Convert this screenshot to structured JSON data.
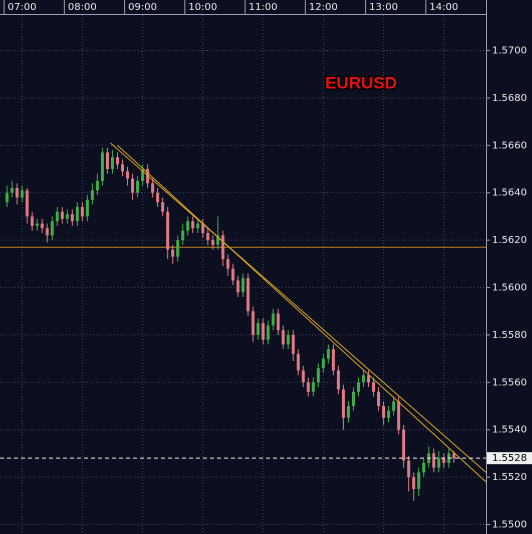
{
  "chart_data": {
    "type": "candlestick",
    "title": "EURUSD",
    "xlim": [
      398,
      882
    ],
    "xticks": [
      {
        "value": 420,
        "label": "07:00"
      },
      {
        "value": 480,
        "label": "08:00"
      },
      {
        "value": 540,
        "label": "09:00"
      },
      {
        "value": 600,
        "label": "10:00"
      },
      {
        "value": 660,
        "label": "11:00"
      },
      {
        "value": 720,
        "label": "12:00"
      },
      {
        "value": 780,
        "label": "13:00"
      },
      {
        "value": 840,
        "label": "14:00"
      }
    ],
    "ylim": [
      1.5496,
      1.5715
    ],
    "yticks": [
      {
        "value": 1.55,
        "label": "1.5500"
      },
      {
        "value": 1.552,
        "label": "1.5520"
      },
      {
        "value": 1.554,
        "label": "1.5540"
      },
      {
        "value": 1.556,
        "label": "1.5560"
      },
      {
        "value": 1.558,
        "label": "1.5580"
      },
      {
        "value": 1.56,
        "label": "1.5600"
      },
      {
        "value": 1.562,
        "label": "1.5620"
      },
      {
        "value": 1.564,
        "label": "1.5640"
      },
      {
        "value": 1.566,
        "label": "1.5660"
      },
      {
        "value": 1.568,
        "label": "1.5680"
      },
      {
        "value": 1.57,
        "label": "1.5700"
      }
    ],
    "grid": true,
    "up_color": "#3fae49",
    "down_color": "#e07a84",
    "x": [
      405,
      410,
      415,
      420,
      425,
      430,
      435,
      440,
      445,
      450,
      455,
      460,
      465,
      470,
      475,
      480,
      485,
      490,
      495,
      500,
      505,
      510,
      515,
      520,
      525,
      530,
      535,
      540,
      545,
      550,
      555,
      560,
      565,
      570,
      575,
      580,
      585,
      590,
      595,
      600,
      605,
      610,
      615,
      620,
      625,
      630,
      635,
      640,
      645,
      650,
      655,
      660,
      665,
      670,
      675,
      680,
      685,
      690,
      695,
      700,
      705,
      710,
      715,
      720,
      725,
      730,
      735,
      740,
      745,
      750,
      755,
      760,
      765,
      770,
      775,
      780,
      785,
      790,
      795,
      800,
      805,
      810,
      815,
      820,
      825,
      830,
      835,
      840,
      845,
      850
    ],
    "open": [
      1.5636,
      1.564,
      1.5642,
      1.5638,
      1.5641,
      1.563,
      1.5626,
      1.5627,
      1.5625,
      1.5622,
      1.5628,
      1.5632,
      1.5629,
      1.5631,
      1.5628,
      1.5634,
      1.563,
      1.5637,
      1.5641,
      1.5645,
      1.5657,
      1.565,
      1.5655,
      1.5652,
      1.5649,
      1.5646,
      1.564,
      1.5645,
      1.565,
      1.5644,
      1.564,
      1.5636,
      1.5632,
      1.5616,
      1.5613,
      1.562,
      1.5624,
      1.5628,
      1.5625,
      1.5627,
      1.5623,
      1.562,
      1.5618,
      1.5622,
      1.5612,
      1.5608,
      1.5603,
      1.5598,
      1.5604,
      1.559,
      1.558,
      1.5585,
      1.5578,
      1.5584,
      1.5589,
      1.5582,
      1.5576,
      1.558,
      1.5572,
      1.5565,
      1.556,
      1.5556,
      1.556,
      1.5566,
      1.557,
      1.5574,
      1.5565,
      1.5557,
      1.5545,
      1.555,
      1.5556,
      1.556,
      1.5563,
      1.556,
      1.5556,
      1.555,
      1.5545,
      1.5548,
      1.5552,
      1.554,
      1.5527,
      1.552,
      1.5515,
      1.5522,
      1.5526,
      1.553,
      1.5524,
      1.5528,
      1.5526,
      1.553
    ],
    "high": [
      1.5643,
      1.5645,
      1.5644,
      1.5643,
      1.5642,
      1.5632,
      1.5629,
      1.5629,
      1.5627,
      1.563,
      1.5634,
      1.5634,
      1.5633,
      1.5633,
      1.5636,
      1.5636,
      1.5639,
      1.5644,
      1.5648,
      1.5659,
      1.5659,
      1.5658,
      1.5657,
      1.5654,
      1.5651,
      1.5648,
      1.5647,
      1.5652,
      1.5652,
      1.5646,
      1.5642,
      1.5638,
      1.5634,
      1.5618,
      1.5622,
      1.5627,
      1.563,
      1.563,
      1.5629,
      1.5629,
      1.5625,
      1.5622,
      1.563,
      1.5624,
      1.5614,
      1.561,
      1.5605,
      1.5606,
      1.5606,
      1.5592,
      1.5587,
      1.5587,
      1.5586,
      1.5591,
      1.5591,
      1.5584,
      1.5582,
      1.5582,
      1.5574,
      1.5567,
      1.5562,
      1.5562,
      1.5568,
      1.5572,
      1.5576,
      1.5576,
      1.5567,
      1.5559,
      1.5552,
      1.5558,
      1.5562,
      1.5565,
      1.5565,
      1.5562,
      1.5558,
      1.5552,
      1.555,
      1.5554,
      1.5554,
      1.5542,
      1.5529,
      1.5522,
      1.5524,
      1.5528,
      1.5533,
      1.5532,
      1.5531,
      1.553,
      1.5532,
      1.5531
    ],
    "low": [
      1.5634,
      1.5638,
      1.5635,
      1.5636,
      1.5627,
      1.5624,
      1.5624,
      1.5623,
      1.5619,
      1.562,
      1.5626,
      1.5627,
      1.5627,
      1.5626,
      1.5626,
      1.5628,
      1.5628,
      1.5635,
      1.5639,
      1.5643,
      1.5648,
      1.5648,
      1.565,
      1.5647,
      1.5643,
      1.5637,
      1.5638,
      1.5643,
      1.5642,
      1.5638,
      1.5634,
      1.563,
      1.5612,
      1.561,
      1.5611,
      1.5618,
      1.5622,
      1.5623,
      1.5623,
      1.5621,
      1.5618,
      1.5616,
      1.5616,
      1.5609,
      1.5605,
      1.5601,
      1.5596,
      1.5596,
      1.5588,
      1.5577,
      1.5578,
      1.5576,
      1.5576,
      1.5582,
      1.558,
      1.5574,
      1.5574,
      1.5569,
      1.5563,
      1.5558,
      1.5554,
      1.5554,
      1.5558,
      1.5564,
      1.5568,
      1.5563,
      1.5555,
      1.554,
      1.5543,
      1.5548,
      1.5554,
      1.5558,
      1.5558,
      1.5554,
      1.5548,
      1.5542,
      1.5543,
      1.5546,
      1.5538,
      1.5524,
      1.5514,
      1.551,
      1.5512,
      1.552,
      1.5524,
      1.5522,
      1.5522,
      1.5524,
      1.5524,
      1.5526
    ],
    "close": [
      1.564,
      1.5642,
      1.5638,
      1.5641,
      1.563,
      1.5626,
      1.5627,
      1.5625,
      1.5622,
      1.5628,
      1.5632,
      1.5629,
      1.5631,
      1.5628,
      1.5634,
      1.563,
      1.5637,
      1.5641,
      1.5645,
      1.5657,
      1.565,
      1.5655,
      1.5652,
      1.5649,
      1.5646,
      1.564,
      1.5645,
      1.565,
      1.5644,
      1.564,
      1.5636,
      1.5632,
      1.5616,
      1.5613,
      1.562,
      1.5624,
      1.5628,
      1.5625,
      1.5627,
      1.5623,
      1.562,
      1.5618,
      1.5622,
      1.5612,
      1.5608,
      1.5603,
      1.5598,
      1.5604,
      1.559,
      1.558,
      1.5585,
      1.5578,
      1.5584,
      1.5589,
      1.5582,
      1.5576,
      1.558,
      1.5572,
      1.5565,
      1.556,
      1.5556,
      1.556,
      1.5566,
      1.557,
      1.5574,
      1.5565,
      1.5557,
      1.5545,
      1.555,
      1.5556,
      1.556,
      1.5563,
      1.556,
      1.5556,
      1.555,
      1.5545,
      1.5548,
      1.5552,
      1.554,
      1.5527,
      1.552,
      1.5515,
      1.5522,
      1.5526,
      1.553,
      1.5524,
      1.5528,
      1.5526,
      1.553,
      1.5528
    ],
    "horizontal_line": {
      "value": 1.5617,
      "color": "#c8821e"
    },
    "trendlines": [
      {
        "x": [
          508,
          882
        ],
        "y": [
          1.5661,
          1.5522
        ],
        "color": "#d7a21e"
      },
      {
        "x": [
          515,
          882
        ],
        "y": [
          1.566,
          1.5518
        ],
        "color": "#d7a21e"
      }
    ],
    "last_price": 1.5528
  }
}
